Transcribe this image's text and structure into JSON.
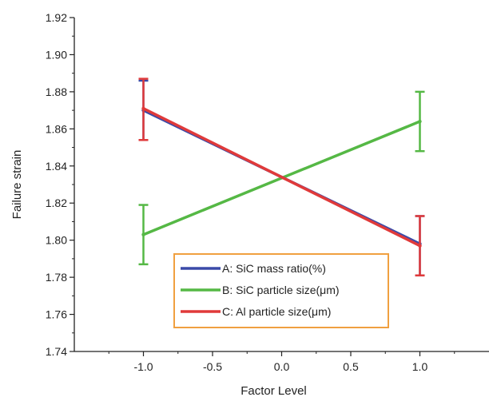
{
  "chart_data": {
    "type": "line",
    "title": "",
    "xlabel": "Factor Level",
    "ylabel": "Failure strain",
    "xlim": [
      -1.5,
      1.5
    ],
    "ylim": [
      1.74,
      1.92
    ],
    "xticks": [
      -1.0,
      -0.5,
      0.0,
      0.5,
      1.0
    ],
    "xtick_labels": [
      "-1.0",
      "-0.5",
      "0.0",
      "0.5",
      "1.0"
    ],
    "yticks": [
      1.74,
      1.76,
      1.78,
      1.8,
      1.82,
      1.84,
      1.86,
      1.88,
      1.9,
      1.92
    ],
    "ytick_labels": [
      "1.74",
      "1.76",
      "1.78",
      "1.80",
      "1.82",
      "1.84",
      "1.86",
      "1.88",
      "1.90",
      "1.92"
    ],
    "grid": false,
    "legend_position": "bottom-center",
    "legend_border_color": "#f0a040",
    "series": [
      {
        "name": "A: SiC mass ratio(%)",
        "color": "#3a4aa8",
        "x": [
          -1.0,
          1.0
        ],
        "y": [
          1.87,
          1.798
        ],
        "err_low": [
          1.854,
          1.781
        ],
        "err_high": [
          1.886,
          1.813
        ]
      },
      {
        "name": "B: SiC particle size(μm)",
        "color": "#55b845",
        "x": [
          -1.0,
          1.0
        ],
        "y": [
          1.803,
          1.864
        ],
        "err_low": [
          1.787,
          1.848
        ],
        "err_high": [
          1.819,
          1.88
        ]
      },
      {
        "name": "C: Al particle size(μm)",
        "color": "#e03a3a",
        "x": [
          -1.0,
          1.0
        ],
        "y": [
          1.871,
          1.797
        ],
        "err_low": [
          1.854,
          1.781
        ],
        "err_high": [
          1.887,
          1.813
        ]
      }
    ]
  }
}
